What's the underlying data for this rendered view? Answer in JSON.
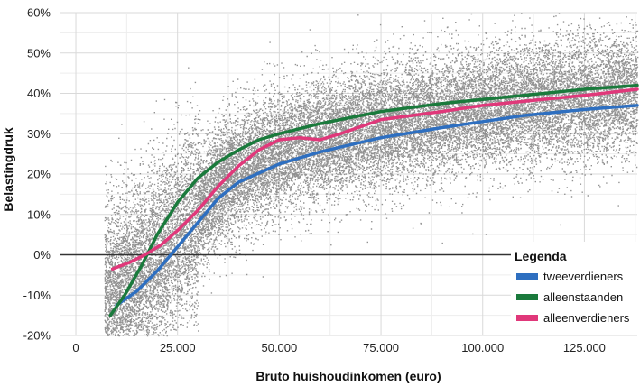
{
  "chart_data": {
    "type": "scatter",
    "title": "",
    "xlabel": "Bruto huishoudinkomen (euro)",
    "ylabel": "Belastingdruk",
    "xlim": [
      -4000,
      138000
    ],
    "ylim": [
      -20,
      60
    ],
    "x_ticks": [
      0,
      25000,
      50000,
      75000,
      100000,
      125000
    ],
    "x_tick_labels": [
      "0",
      "25.000",
      "50.000",
      "75.000",
      "100.000",
      "125.000"
    ],
    "y_ticks": [
      -20,
      -10,
      0,
      10,
      20,
      30,
      40,
      50,
      60
    ],
    "y_tick_labels": [
      "-20%",
      "-10%",
      "0%",
      "10%",
      "20%",
      "30%",
      "40%",
      "50%",
      "60%"
    ],
    "grid": true,
    "legend": {
      "title": "Legenda",
      "position": "bottom-right"
    },
    "scatter_color": "#7f7f7f",
    "series": [
      {
        "name": "tweeverdieners",
        "color": "#2e6fc0",
        "x": [
          10000,
          15000,
          20000,
          25000,
          30000,
          35000,
          40000,
          50000,
          60000,
          75000,
          90000,
          100000,
          110000,
          125000,
          138000
        ],
        "y": [
          -12.5,
          -9,
          -4,
          2,
          8,
          14,
          18,
          22.5,
          25.5,
          29,
          31.5,
          33,
          34.5,
          36,
          37
        ]
      },
      {
        "name": "alleenstaanden",
        "color": "#1a7a3c",
        "x": [
          8500,
          12000,
          16000,
          20000,
          25000,
          30000,
          35000,
          40000,
          45000,
          50000,
          60000,
          75000,
          90000,
          100000,
          110000,
          125000,
          138000
        ],
        "y": [
          -15,
          -10,
          -3,
          5,
          13,
          19,
          23,
          26,
          28.5,
          30,
          32.5,
          35.5,
          37.5,
          38.5,
          39.5,
          41,
          42
        ]
      },
      {
        "name": "alleenverdieners",
        "color": "#e0387a",
        "x": [
          9000,
          13000,
          17000,
          21000,
          25000,
          30000,
          35000,
          40000,
          45000,
          50000,
          55000,
          60000,
          65000,
          75000,
          90000,
          100000,
          110000,
          125000,
          138000
        ],
        "y": [
          -3.5,
          -2,
          0,
          2.5,
          6,
          11,
          17,
          22,
          26,
          28.5,
          29,
          28.5,
          30,
          33.5,
          35.5,
          37,
          38,
          39.5,
          41
        ]
      }
    ]
  }
}
